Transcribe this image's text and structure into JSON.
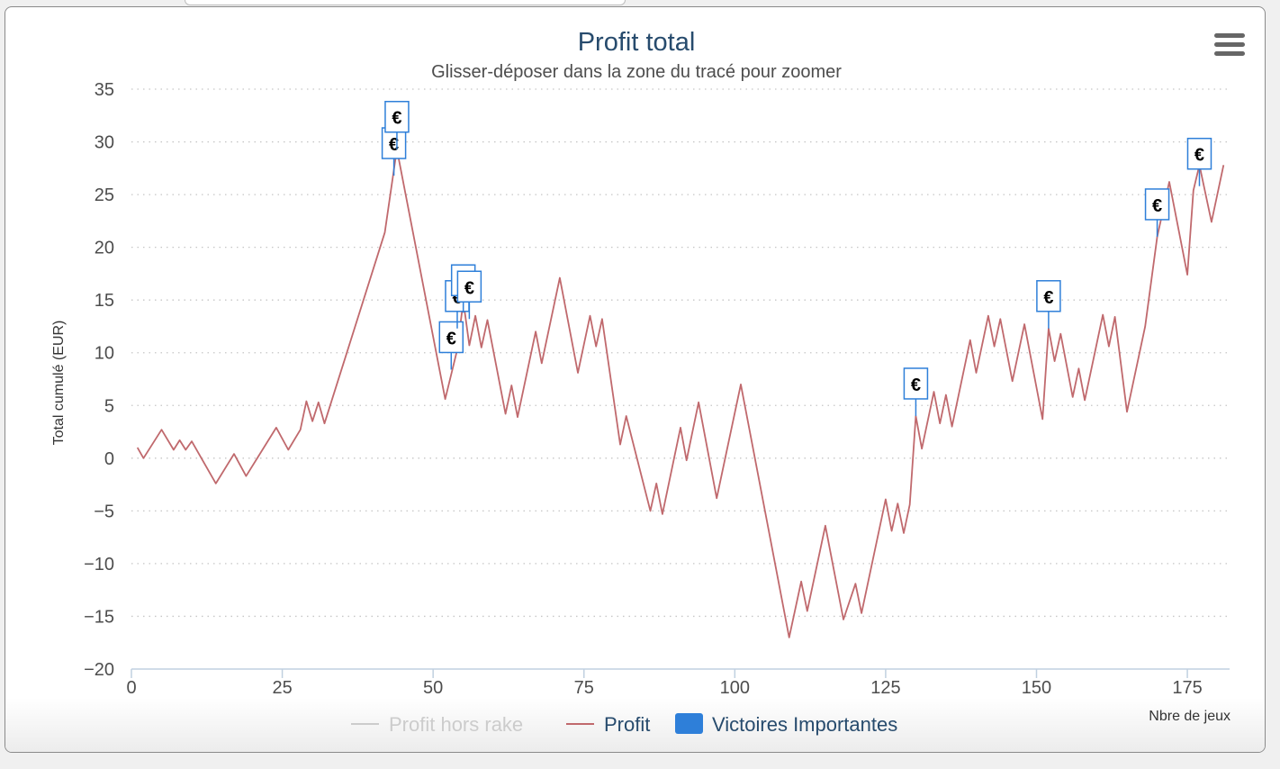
{
  "chart_data": {
    "type": "line",
    "title": "Profit total",
    "subtitle": "Glisser-déposer dans la zone du tracé pour zoomer",
    "ylabel": "Total cumulé (EUR)",
    "xlabel": "Nbre de jeux",
    "xlim": [
      0,
      182
    ],
    "ylim": [
      -20,
      35
    ],
    "x_ticks": [
      0,
      25,
      50,
      75,
      100,
      125,
      150,
      175
    ],
    "y_ticks": [
      -20,
      -15,
      -10,
      -5,
      0,
      5,
      10,
      15,
      20,
      25,
      30,
      35
    ],
    "grid": "horizontal-dotted",
    "legend_placement": "bottom-center",
    "series": [
      {
        "name": "Profit hors rake",
        "color": "#cccccc",
        "visible": false,
        "points": []
      },
      {
        "name": "Profit",
        "color": "#c0696d",
        "visible": true,
        "points": [
          [
            1,
            1.0
          ],
          [
            2,
            0.0
          ],
          [
            5,
            2.7
          ],
          [
            7,
            0.8
          ],
          [
            8,
            1.7
          ],
          [
            9,
            0.8
          ],
          [
            10,
            1.6
          ],
          [
            14,
            -2.4
          ],
          [
            17,
            0.4
          ],
          [
            19,
            -1.7
          ],
          [
            24,
            2.9
          ],
          [
            26,
            0.8
          ],
          [
            28,
            2.7
          ],
          [
            29,
            5.4
          ],
          [
            30,
            3.5
          ],
          [
            31,
            5.3
          ],
          [
            32,
            3.3
          ],
          [
            42,
            21.4
          ],
          [
            44,
            29.3
          ],
          [
            52,
            5.6
          ],
          [
            54,
            10.3
          ],
          [
            55,
            14.9
          ],
          [
            56,
            10.7
          ],
          [
            57,
            13.5
          ],
          [
            58,
            10.5
          ],
          [
            59,
            13.1
          ],
          [
            62,
            4.2
          ],
          [
            63,
            6.9
          ],
          [
            64,
            3.9
          ],
          [
            67,
            12.0
          ],
          [
            68,
            9.0
          ],
          [
            71,
            17.1
          ],
          [
            74,
            8.1
          ],
          [
            76,
            13.5
          ],
          [
            77,
            10.6
          ],
          [
            78,
            13.2
          ],
          [
            81,
            1.3
          ],
          [
            82,
            4.0
          ],
          [
            86,
            -5.0
          ],
          [
            87,
            -2.4
          ],
          [
            88,
            -5.3
          ],
          [
            91,
            2.9
          ],
          [
            92,
            -0.2
          ],
          [
            94,
            5.3
          ],
          [
            97,
            -3.8
          ],
          [
            101,
            7.0
          ],
          [
            109,
            -17.0
          ],
          [
            111,
            -11.7
          ],
          [
            112,
            -14.5
          ],
          [
            115,
            -6.4
          ],
          [
            118,
            -15.3
          ],
          [
            120,
            -11.9
          ],
          [
            121,
            -14.7
          ],
          [
            125,
            -3.9
          ],
          [
            126,
            -6.9
          ],
          [
            127,
            -4.3
          ],
          [
            128,
            -7.1
          ],
          [
            129,
            -4.4
          ],
          [
            130,
            4.0
          ],
          [
            131,
            0.9
          ],
          [
            133,
            6.3
          ],
          [
            134,
            3.3
          ],
          [
            135,
            6.0
          ],
          [
            136,
            3.0
          ],
          [
            139,
            11.2
          ],
          [
            140,
            8.1
          ],
          [
            142,
            13.5
          ],
          [
            143,
            10.6
          ],
          [
            144,
            13.2
          ],
          [
            146,
            7.3
          ],
          [
            148,
            12.7
          ],
          [
            151,
            3.7
          ],
          [
            152,
            12.3
          ],
          [
            153,
            9.2
          ],
          [
            154,
            11.8
          ],
          [
            156,
            5.8
          ],
          [
            157,
            8.5
          ],
          [
            158,
            5.5
          ],
          [
            161,
            13.6
          ],
          [
            162,
            10.6
          ],
          [
            163,
            13.4
          ],
          [
            165,
            4.4
          ],
          [
            168,
            12.5
          ],
          [
            170,
            21.0
          ],
          [
            172,
            26.2
          ],
          [
            175,
            17.4
          ],
          [
            176,
            25.4
          ],
          [
            177,
            27.8
          ],
          [
            179,
            22.4
          ],
          [
            181,
            27.8
          ]
        ]
      }
    ],
    "flags": {
      "name": "Victoires Importantes",
      "color": "#2e7fd9",
      "symbol": "€",
      "points": [
        [
          43.5,
          26.8
        ],
        [
          44,
          29.3
        ],
        [
          53,
          8.4
        ],
        [
          54,
          12.3
        ],
        [
          55,
          13.8
        ],
        [
          56,
          13.2
        ],
        [
          130,
          4.0
        ],
        [
          152,
          12.3
        ],
        [
          170,
          21.0
        ],
        [
          177,
          25.8
        ]
      ]
    }
  }
}
